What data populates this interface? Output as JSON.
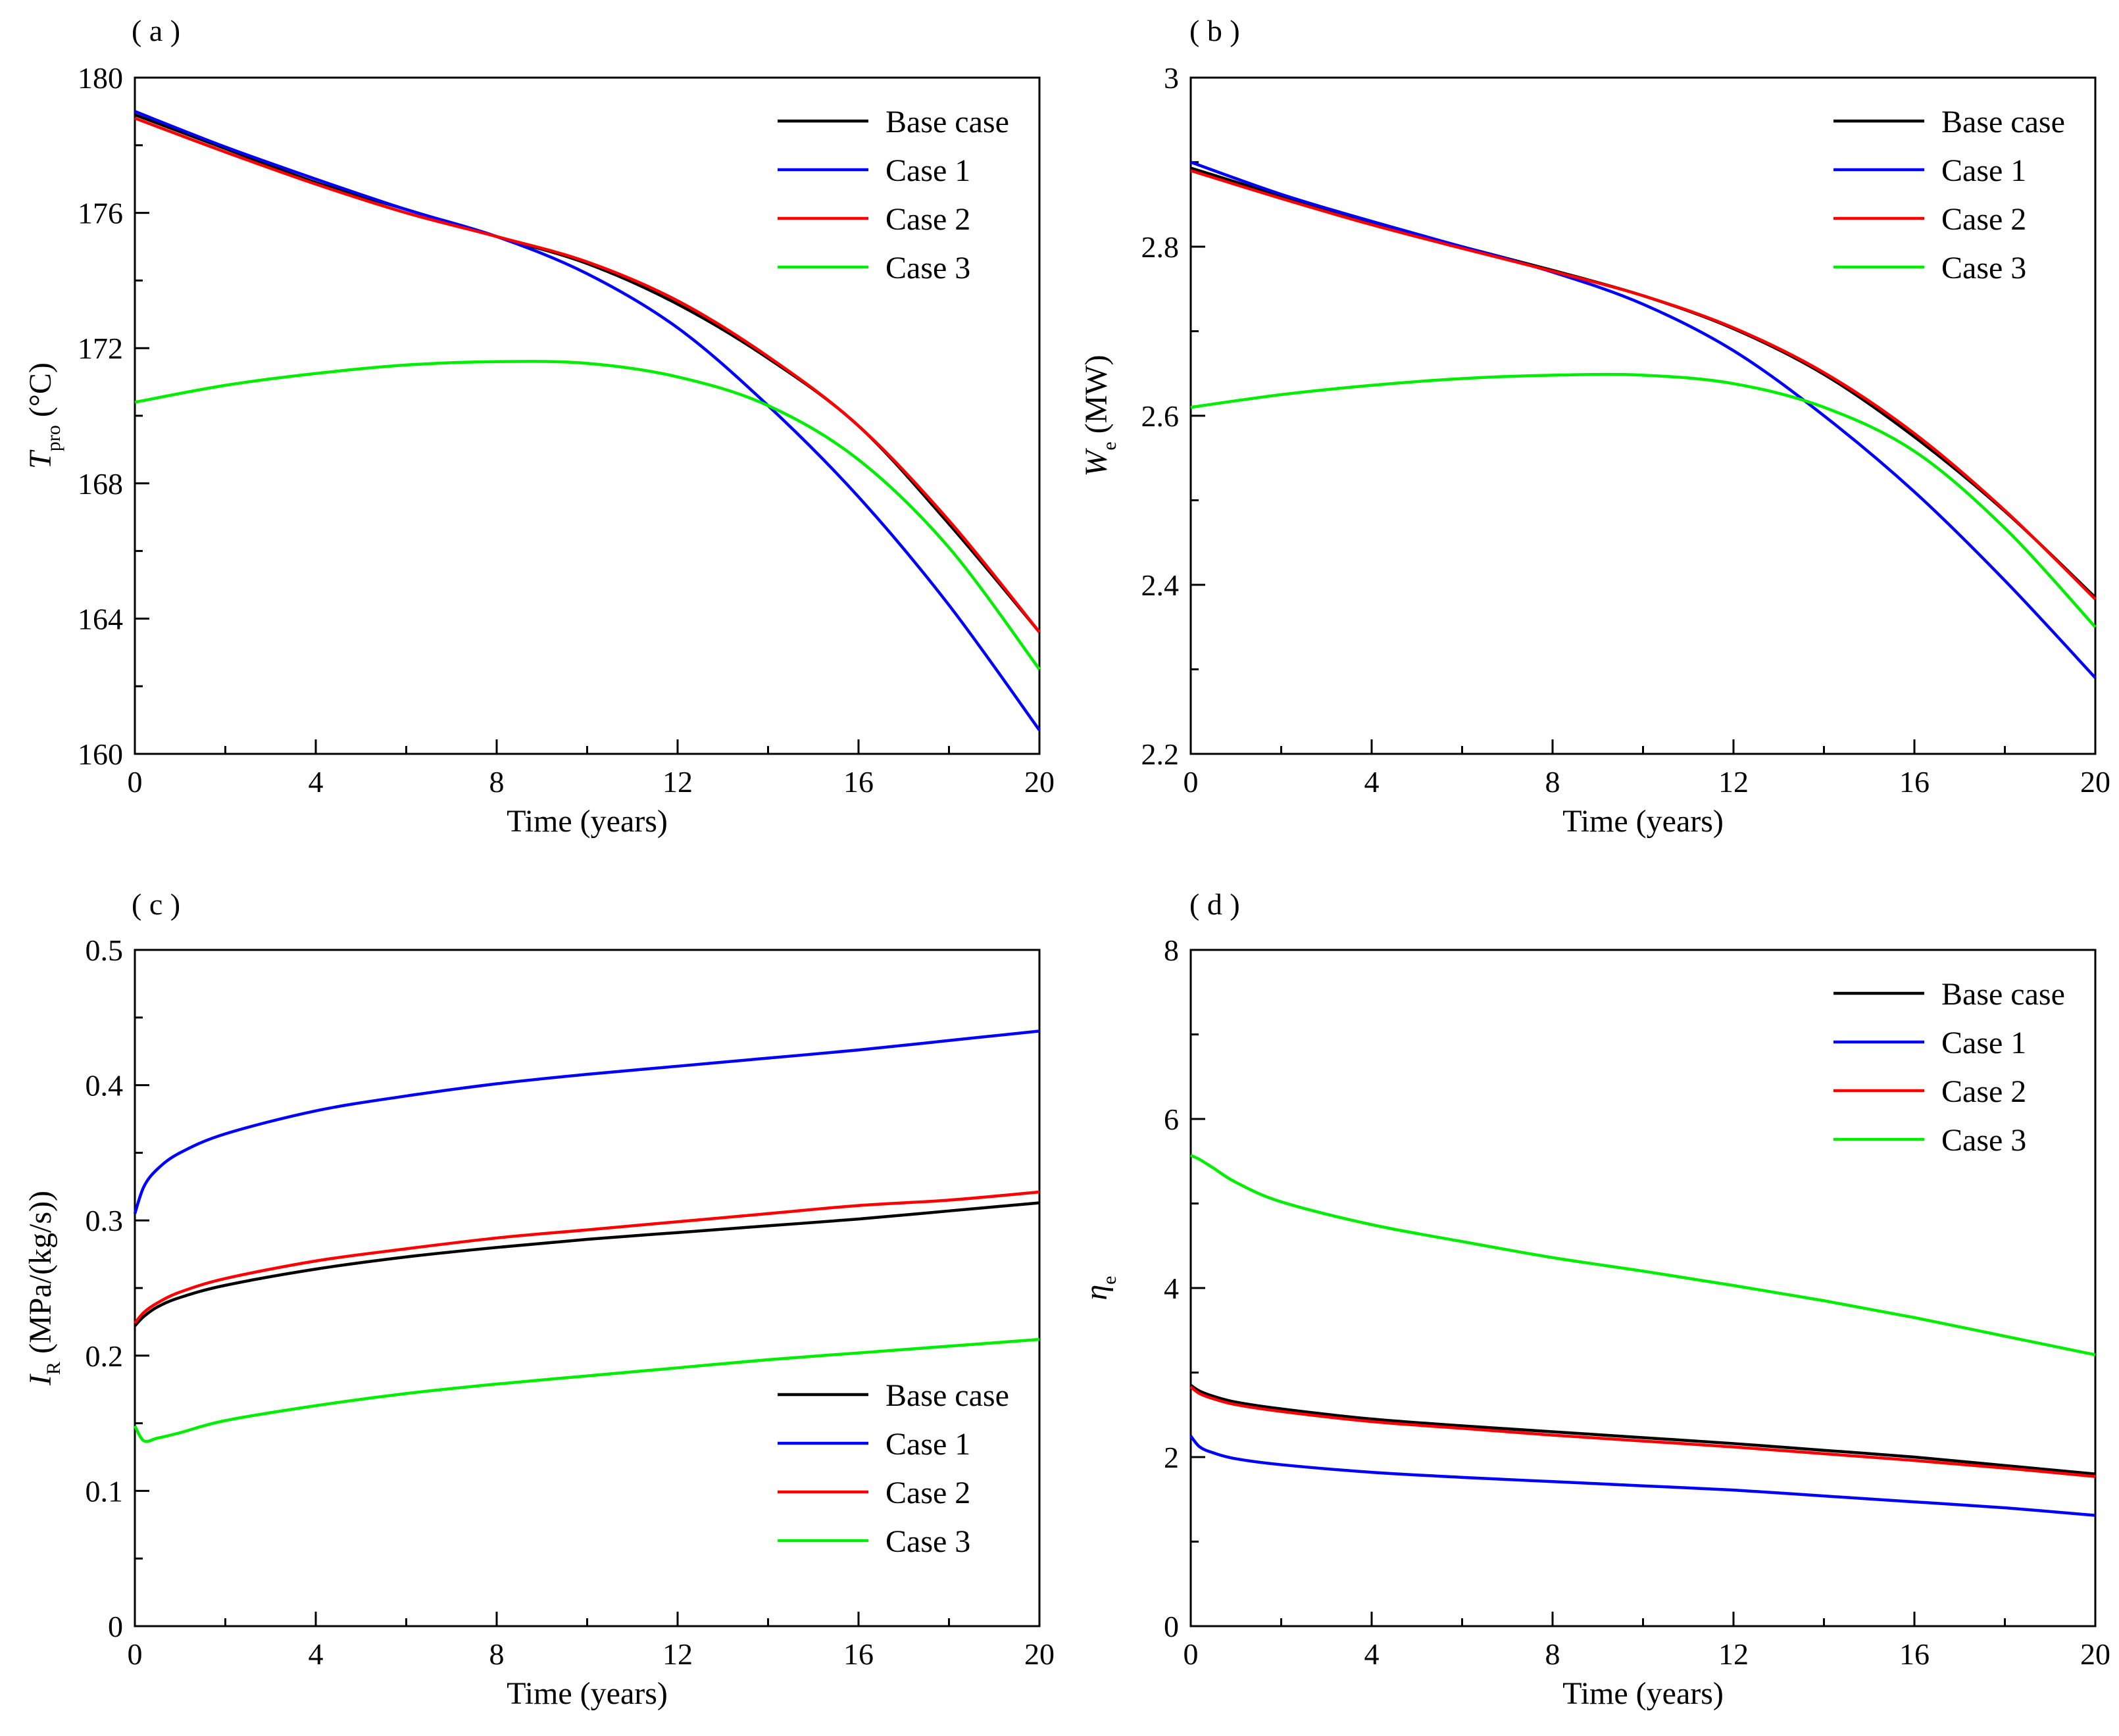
{
  "figure": {
    "series_colors": {
      "Base case": "#000000",
      "Case 1": "#0000ff",
      "Case 2": "#ff0000",
      "Case 3": "#00ee00"
    }
  },
  "chart_data": [
    {
      "type": "line",
      "panel": "( a )",
      "xlabel": "Time (years)",
      "ylabel": {
        "main": "T",
        "sub": "pro",
        "unit": " (°C)"
      },
      "xlim": [
        0,
        20
      ],
      "ylim": [
        160,
        180
      ],
      "xticks": [
        0,
        4,
        8,
        12,
        16,
        20
      ],
      "yticks": [
        160,
        164,
        168,
        172,
        176,
        180
      ],
      "legend": {
        "position": "top-right",
        "entries": [
          "Base case",
          "Case 1",
          "Case 2",
          "Case 3"
        ]
      },
      "x": [
        0,
        2,
        4,
        6,
        8,
        10,
        12,
        14,
        16,
        18,
        20
      ],
      "series": [
        {
          "name": "Base case",
          "values": [
            178.9,
            177.9,
            176.9,
            176.1,
            175.3,
            174.5,
            173.3,
            171.7,
            169.7,
            166.8,
            163.6
          ]
        },
        {
          "name": "Case 1",
          "values": [
            179.0,
            177.95,
            177.0,
            176.1,
            175.3,
            174.2,
            172.6,
            170.3,
            167.6,
            164.4,
            160.7
          ]
        },
        {
          "name": "Case 2",
          "values": [
            178.8,
            177.8,
            176.85,
            176.0,
            175.3,
            174.55,
            173.4,
            171.75,
            169.7,
            166.9,
            163.6
          ]
        },
        {
          "name": "Case 3",
          "values": [
            170.4,
            170.9,
            171.25,
            171.5,
            171.6,
            171.55,
            171.15,
            170.3,
            168.7,
            166.1,
            162.5
          ]
        }
      ]
    },
    {
      "type": "line",
      "panel": "( b )",
      "xlabel": "Time (years)",
      "ylabel": {
        "main": "W",
        "sub": "e",
        "unit": " (MW)"
      },
      "xlim": [
        0,
        20
      ],
      "ylim": [
        2.2,
        3.0
      ],
      "xticks": [
        0,
        4,
        8,
        12,
        16,
        20
      ],
      "yticks": [
        2.2,
        2.4,
        2.6,
        2.8,
        3.0
      ],
      "yticklabels": [
        "2.2",
        "2.4",
        "2.6",
        "2.8",
        "3"
      ],
      "legend": {
        "position": "top-right",
        "entries": [
          "Base case",
          "Case 1",
          "Case 2",
          "Case 3"
        ]
      },
      "x": [
        0,
        2,
        4,
        6,
        8,
        10,
        12,
        14,
        16,
        18,
        20
      ],
      "series": [
        {
          "name": "Base case",
          "values": [
            2.893,
            2.86,
            2.828,
            2.8,
            2.772,
            2.742,
            2.703,
            2.649,
            2.575,
            2.487,
            2.385
          ]
        },
        {
          "name": "Case 1",
          "values": [
            2.9,
            2.862,
            2.83,
            2.8,
            2.77,
            2.732,
            2.677,
            2.6,
            2.51,
            2.405,
            2.29
          ]
        },
        {
          "name": "Case 2",
          "values": [
            2.89,
            2.857,
            2.826,
            2.798,
            2.771,
            2.742,
            2.704,
            2.651,
            2.579,
            2.488,
            2.383
          ]
        },
        {
          "name": "Case 3",
          "values": [
            2.61,
            2.625,
            2.636,
            2.644,
            2.648,
            2.648,
            2.638,
            2.61,
            2.558,
            2.467,
            2.35
          ]
        }
      ]
    },
    {
      "type": "line",
      "panel": "( c )",
      "xlabel": "Time (years)",
      "ylabel": {
        "main": "I",
        "sub": "R",
        "unit": " (MPa/(kg/s))"
      },
      "xlim": [
        0,
        20
      ],
      "ylim": [
        0,
        0.5
      ],
      "xticks": [
        0,
        4,
        8,
        12,
        16,
        20
      ],
      "yticks": [
        0,
        0.1,
        0.2,
        0.3,
        0.4,
        0.5
      ],
      "yticklabels": [
        "0",
        "0.1",
        "0.2",
        "0.3",
        "0.4",
        "0.5"
      ],
      "legend": {
        "position": "bottom-right",
        "entries": [
          "Base case",
          "Case 1",
          "Case 2",
          "Case 3"
        ]
      },
      "x": [
        0,
        0.2,
        0.5,
        1,
        2,
        4,
        6,
        8,
        10,
        12,
        14,
        16,
        18,
        20
      ],
      "series": [
        {
          "name": "Base case",
          "values": [
            0.222,
            0.229,
            0.236,
            0.243,
            0.252,
            0.264,
            0.273,
            0.28,
            0.286,
            0.291,
            0.296,
            0.301,
            0.307,
            0.313
          ]
        },
        {
          "name": "Case 1",
          "values": [
            0.305,
            0.325,
            0.338,
            0.35,
            0.364,
            0.381,
            0.392,
            0.401,
            0.408,
            0.414,
            0.42,
            0.426,
            0.433,
            0.44
          ]
        },
        {
          "name": "Case 2",
          "values": [
            0.224,
            0.232,
            0.239,
            0.247,
            0.257,
            0.27,
            0.279,
            0.287,
            0.293,
            0.299,
            0.305,
            0.311,
            0.315,
            0.321
          ]
        },
        {
          "name": "Case 3",
          "values": [
            0.148,
            0.137,
            0.139,
            0.143,
            0.152,
            0.163,
            0.172,
            0.179,
            0.185,
            0.191,
            0.197,
            0.202,
            0.207,
            0.212
          ]
        }
      ]
    },
    {
      "type": "line",
      "panel": "( d )",
      "xlabel": "Time (years)",
      "ylabel": {
        "main": "η",
        "sub": "e",
        "unit": ""
      },
      "xlim": [
        0,
        20
      ],
      "ylim": [
        0,
        8
      ],
      "xticks": [
        0,
        4,
        8,
        12,
        16,
        20
      ],
      "yticks": [
        0,
        2,
        4,
        6,
        8
      ],
      "legend": {
        "position": "top-right",
        "entries": [
          "Base case",
          "Case 1",
          "Case 2",
          "Case 3"
        ]
      },
      "x": [
        0,
        0.2,
        0.5,
        1,
        2,
        4,
        6,
        8,
        10,
        12,
        14,
        16,
        18,
        20
      ],
      "series": [
        {
          "name": "Base case",
          "values": [
            2.85,
            2.78,
            2.72,
            2.65,
            2.57,
            2.45,
            2.37,
            2.3,
            2.23,
            2.16,
            2.08,
            2.0,
            1.9,
            1.8
          ]
        },
        {
          "name": "Case 1",
          "values": [
            2.25,
            2.12,
            2.05,
            1.98,
            1.91,
            1.82,
            1.76,
            1.71,
            1.66,
            1.61,
            1.54,
            1.47,
            1.4,
            1.31
          ]
        },
        {
          "name": "Case 2",
          "values": [
            2.83,
            2.75,
            2.69,
            2.62,
            2.54,
            2.42,
            2.34,
            2.26,
            2.19,
            2.12,
            2.04,
            1.96,
            1.87,
            1.77
          ]
        },
        {
          "name": "Case 3",
          "values": [
            5.57,
            5.52,
            5.42,
            5.25,
            5.02,
            4.75,
            4.55,
            4.36,
            4.2,
            4.03,
            3.85,
            3.65,
            3.43,
            3.21
          ]
        }
      ]
    }
  ]
}
